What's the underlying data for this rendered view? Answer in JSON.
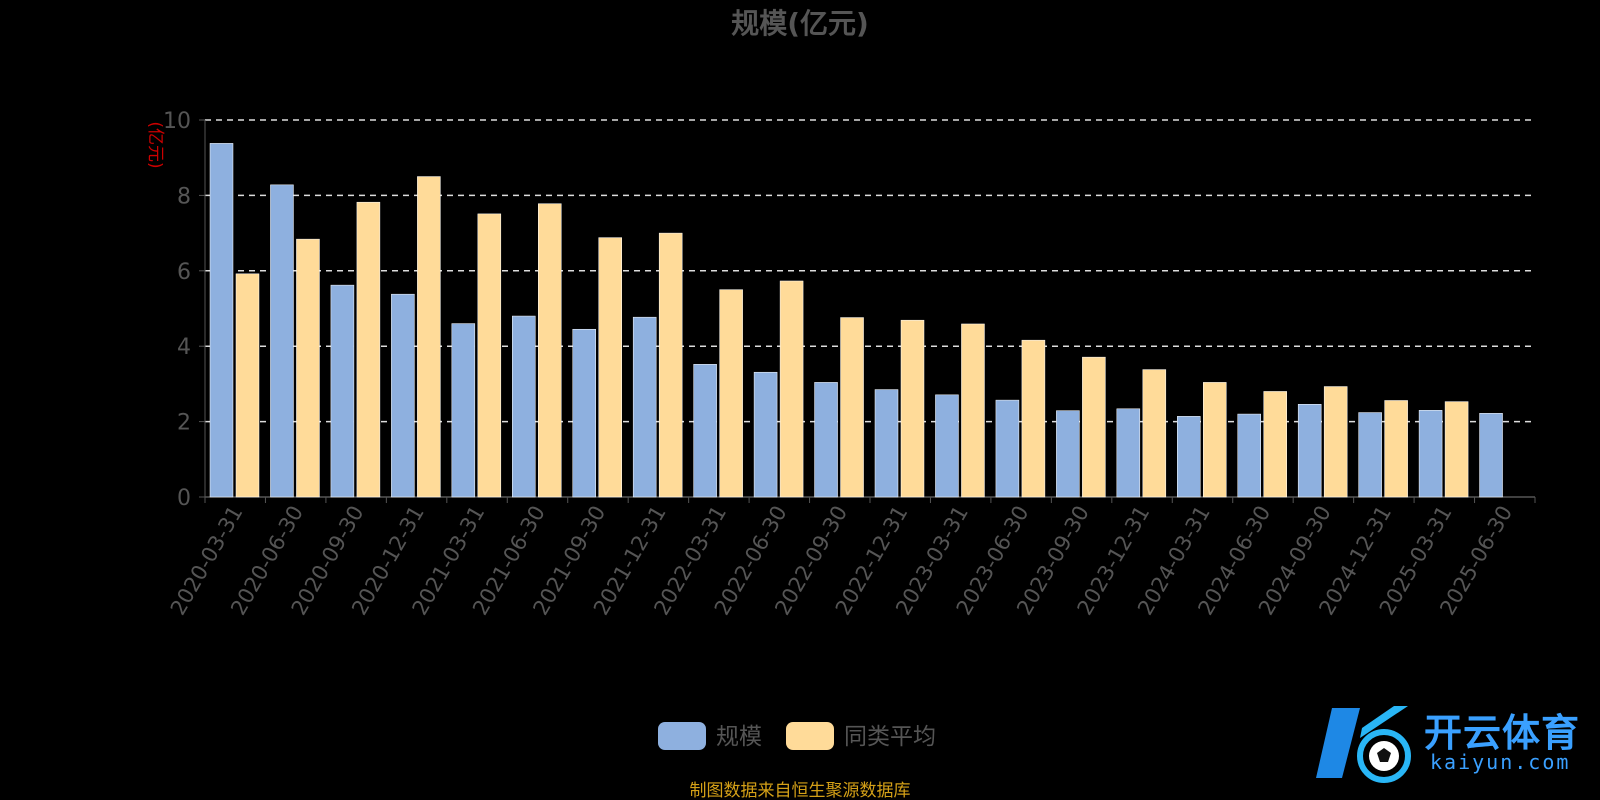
{
  "chart_data": {
    "type": "bar",
    "title": "规模(亿元)",
    "ylabel": "(亿元)",
    "xlabel": "",
    "ylim": [
      0,
      10
    ],
    "yticks": [
      0,
      2,
      4,
      6,
      8,
      10
    ],
    "grid": true,
    "legend_position": "bottom",
    "categories": [
      "2020-03-31",
      "2020-06-30",
      "2020-09-30",
      "2020-12-31",
      "2021-03-31",
      "2021-06-30",
      "2021-09-30",
      "2021-12-31",
      "2022-03-31",
      "2022-06-30",
      "2022-09-30",
      "2022-12-31",
      "2023-03-31",
      "2023-06-30",
      "2023-09-30",
      "2023-12-31",
      "2024-03-31",
      "2024-06-30",
      "2024-09-30",
      "2024-12-31",
      "2025-03-31",
      "2025-06-30"
    ],
    "series": [
      {
        "name": "规模",
        "color": "#8eb0df",
        "values": [
          9.38,
          8.28,
          5.62,
          5.38,
          4.6,
          4.8,
          4.45,
          4.77,
          3.52,
          3.31,
          3.04,
          2.85,
          2.71,
          2.57,
          2.29,
          2.34,
          2.14,
          2.2,
          2.46,
          2.24,
          2.3,
          2.22
        ]
      },
      {
        "name": "同类平均",
        "color": "#ffdb99",
        "values": [
          5.92,
          6.84,
          7.82,
          8.5,
          7.51,
          7.78,
          6.88,
          7.0,
          5.5,
          5.73,
          4.76,
          4.69,
          4.59,
          4.16,
          3.71,
          3.38,
          3.04,
          2.8,
          2.93,
          2.56,
          2.53,
          null
        ]
      }
    ],
    "source_note": "制图数据来自恒生聚源数据库"
  },
  "watermark": {
    "brand": "开云体育",
    "sub": "kaiyun.com"
  },
  "colors": {
    "background": "#000000",
    "title": "#555555",
    "axis_label": "#cc0000",
    "tick": "#555555",
    "grid": "#dddddd",
    "source": "#d4a017"
  }
}
